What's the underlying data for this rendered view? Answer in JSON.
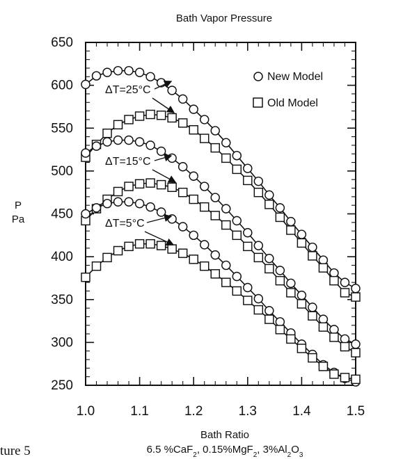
{
  "chart_data": {
    "type": "scatter",
    "title": "Bath Vapor Pressure",
    "xlabel": "Bath Ratio",
    "ylabel": "P",
    "yunit": "Pa",
    "subtitle": "6.5 %CaF2, 0.15%MgF2, 3%Al2O3",
    "caption": "ture 5",
    "xlim": [
      1.0,
      1.5
    ],
    "ylim": [
      250,
      650
    ],
    "xticks": [
      "1.0",
      "1.1",
      "1.2",
      "1.3",
      "1.4",
      "1.5"
    ],
    "yticks": [
      "250",
      "300",
      "350",
      "400",
      "450",
      "500",
      "550",
      "600",
      "650"
    ],
    "grid": false,
    "legend": {
      "position": "top-right",
      "items": [
        {
          "label": "New Model",
          "marker": "circle"
        },
        {
          "label": "Old Model",
          "marker": "square"
        }
      ]
    },
    "annotations": [
      {
        "label": "ΔT=25°C"
      },
      {
        "label": "ΔT=15°C"
      },
      {
        "label": "ΔT=5°C"
      }
    ],
    "x": [
      1.0,
      1.02,
      1.04,
      1.06,
      1.08,
      1.1,
      1.12,
      1.14,
      1.16,
      1.18,
      1.2,
      1.22,
      1.24,
      1.26,
      1.28,
      1.3,
      1.32,
      1.34,
      1.36,
      1.38,
      1.4,
      1.42,
      1.44,
      1.46,
      1.48,
      1.5
    ],
    "series": [
      {
        "name": "New Model",
        "marker": "circle",
        "group": "ΔT=25°C",
        "values": [
          601,
          611,
          615,
          617,
          617,
          615,
          610,
          603,
          594,
          584,
          572,
          560,
          547,
          533,
          518,
          503,
          488,
          472,
          457,
          441,
          426,
          411,
          396,
          381,
          370,
          363
        ]
      },
      {
        "name": "Old Model",
        "marker": "square",
        "group": "ΔT=25°C",
        "values": [
          516,
          531,
          544,
          554,
          560,
          564,
          566,
          565,
          562,
          556,
          548,
          538,
          527,
          515,
          502,
          489,
          475,
          461,
          446,
          431,
          416,
          401,
          387,
          372,
          358,
          353
        ]
      },
      {
        "name": "New Model",
        "marker": "circle",
        "group": "ΔT=15°C",
        "values": [
          521,
          529,
          534,
          536,
          536,
          534,
          530,
          523,
          515,
          505,
          494,
          482,
          469,
          456,
          442,
          428,
          413,
          398,
          384,
          369,
          355,
          341,
          327,
          315,
          304,
          298
        ]
      },
      {
        "name": "Old Model",
        "marker": "square",
        "group": "ΔT=15°C",
        "values": [
          442,
          456,
          467,
          476,
          482,
          485,
          486,
          484,
          481,
          475,
          467,
          458,
          448,
          437,
          425,
          412,
          399,
          386,
          372,
          358,
          345,
          331,
          318,
          306,
          295,
          288
        ]
      },
      {
        "name": "New Model",
        "marker": "circle",
        "group": "ΔT=5°C",
        "values": [
          450,
          457,
          462,
          464,
          464,
          462,
          458,
          452,
          444,
          435,
          425,
          414,
          402,
          390,
          377,
          364,
          351,
          337,
          324,
          311,
          298,
          286,
          274,
          265,
          258,
          254
        ]
      },
      {
        "name": "Old Model",
        "marker": "square",
        "group": "ΔT=5°C",
        "values": [
          376,
          389,
          399,
          407,
          412,
          415,
          415,
          413,
          409,
          404,
          397,
          389,
          380,
          370,
          360,
          349,
          338,
          327,
          315,
          304,
          293,
          282,
          272,
          263,
          259,
          257
        ]
      }
    ]
  }
}
